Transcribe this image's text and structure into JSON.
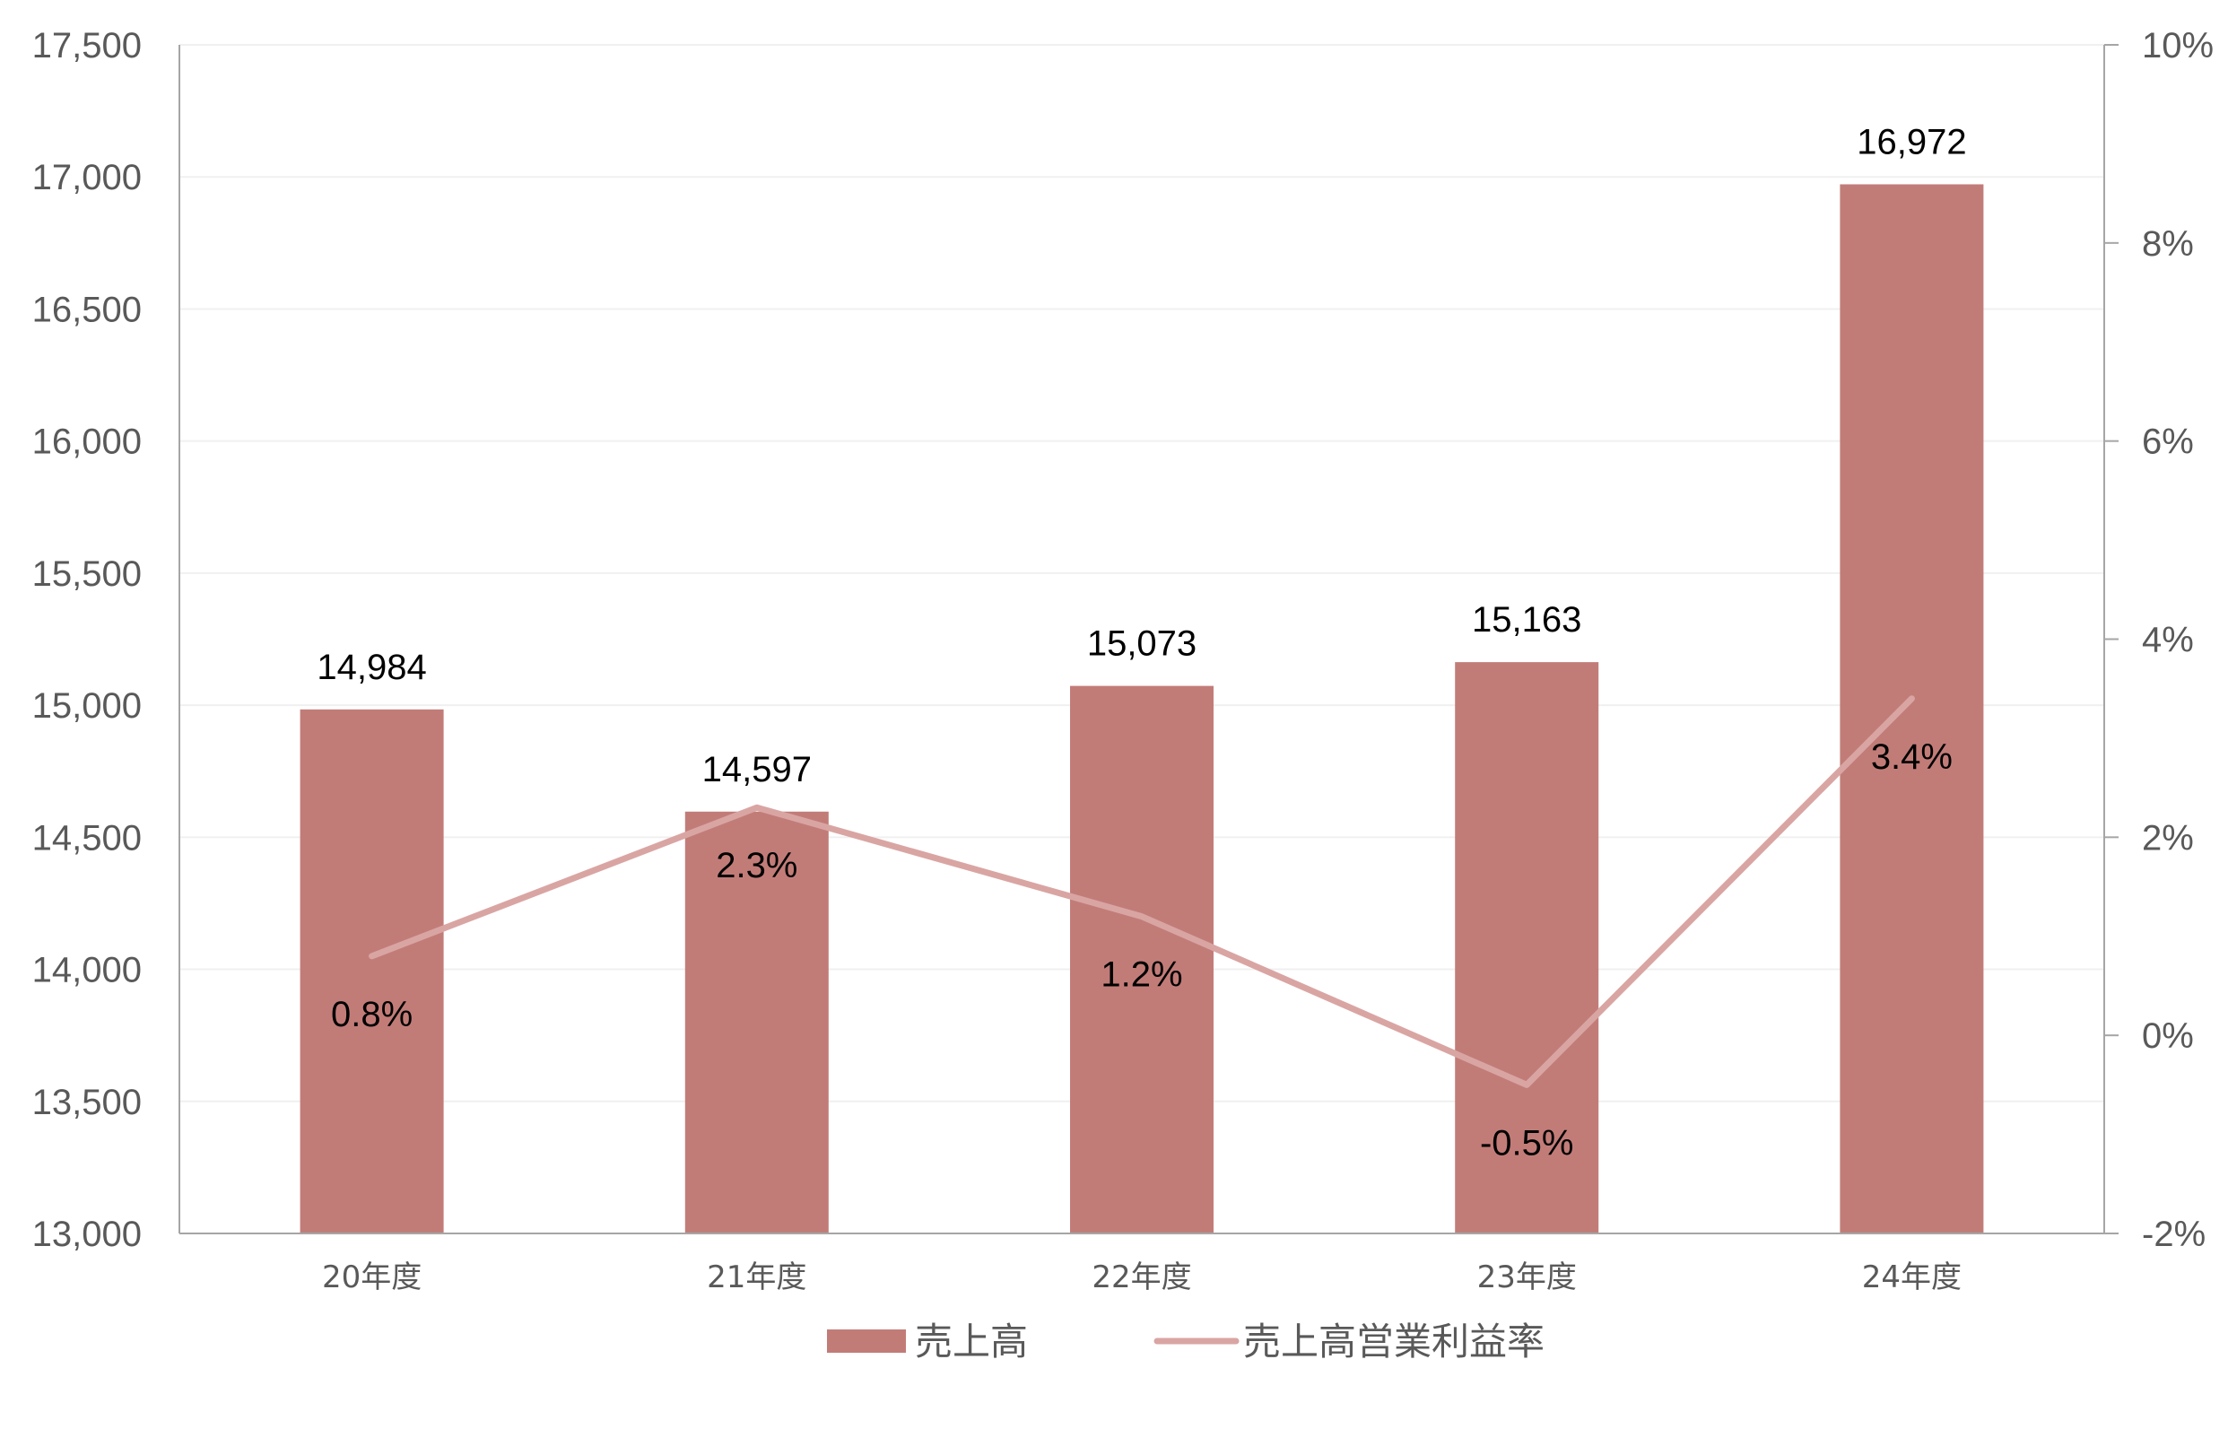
{
  "chart_data": {
    "type": "bar",
    "categories": [
      "20年度",
      "21年度",
      "22年度",
      "23年度",
      "24年度"
    ],
    "series": [
      {
        "name": "売上高",
        "type": "bar",
        "axis": "left",
        "values": [
          14984,
          14597,
          15073,
          15163,
          16972
        ],
        "labels": [
          "14,984",
          "14,597",
          "15,073",
          "15,163",
          "16,972"
        ],
        "color": "#C27C78"
      },
      {
        "name": "売上高営業利益率",
        "type": "line",
        "axis": "right",
        "values": [
          0.8,
          2.3,
          1.2,
          -0.5,
          3.4
        ],
        "labels": [
          "0.8%",
          "2.3%",
          "1.2%",
          "-0.5%",
          "3.4%"
        ],
        "color": "#D9A5A3"
      }
    ],
    "y_left": {
      "range": [
        13000,
        17500
      ],
      "ticks": [
        13000,
        13500,
        14000,
        14500,
        15000,
        15500,
        16000,
        16500,
        17000,
        17500
      ],
      "tick_labels": [
        "13,000",
        "13,500",
        "14,000",
        "14,500",
        "15,000",
        "15,500",
        "16,000",
        "16,500",
        "17,000",
        "17,500"
      ]
    },
    "y_right": {
      "range": [
        -2,
        10
      ],
      "ticks": [
        -2,
        0,
        2,
        4,
        6,
        8,
        10
      ],
      "tick_labels": [
        "-2%",
        "0%",
        "2%",
        "4%",
        "6%",
        "8%",
        "10%"
      ]
    },
    "grid": true,
    "legend_position": "bottom",
    "title": "",
    "xlabel": "",
    "ylabel": ""
  }
}
